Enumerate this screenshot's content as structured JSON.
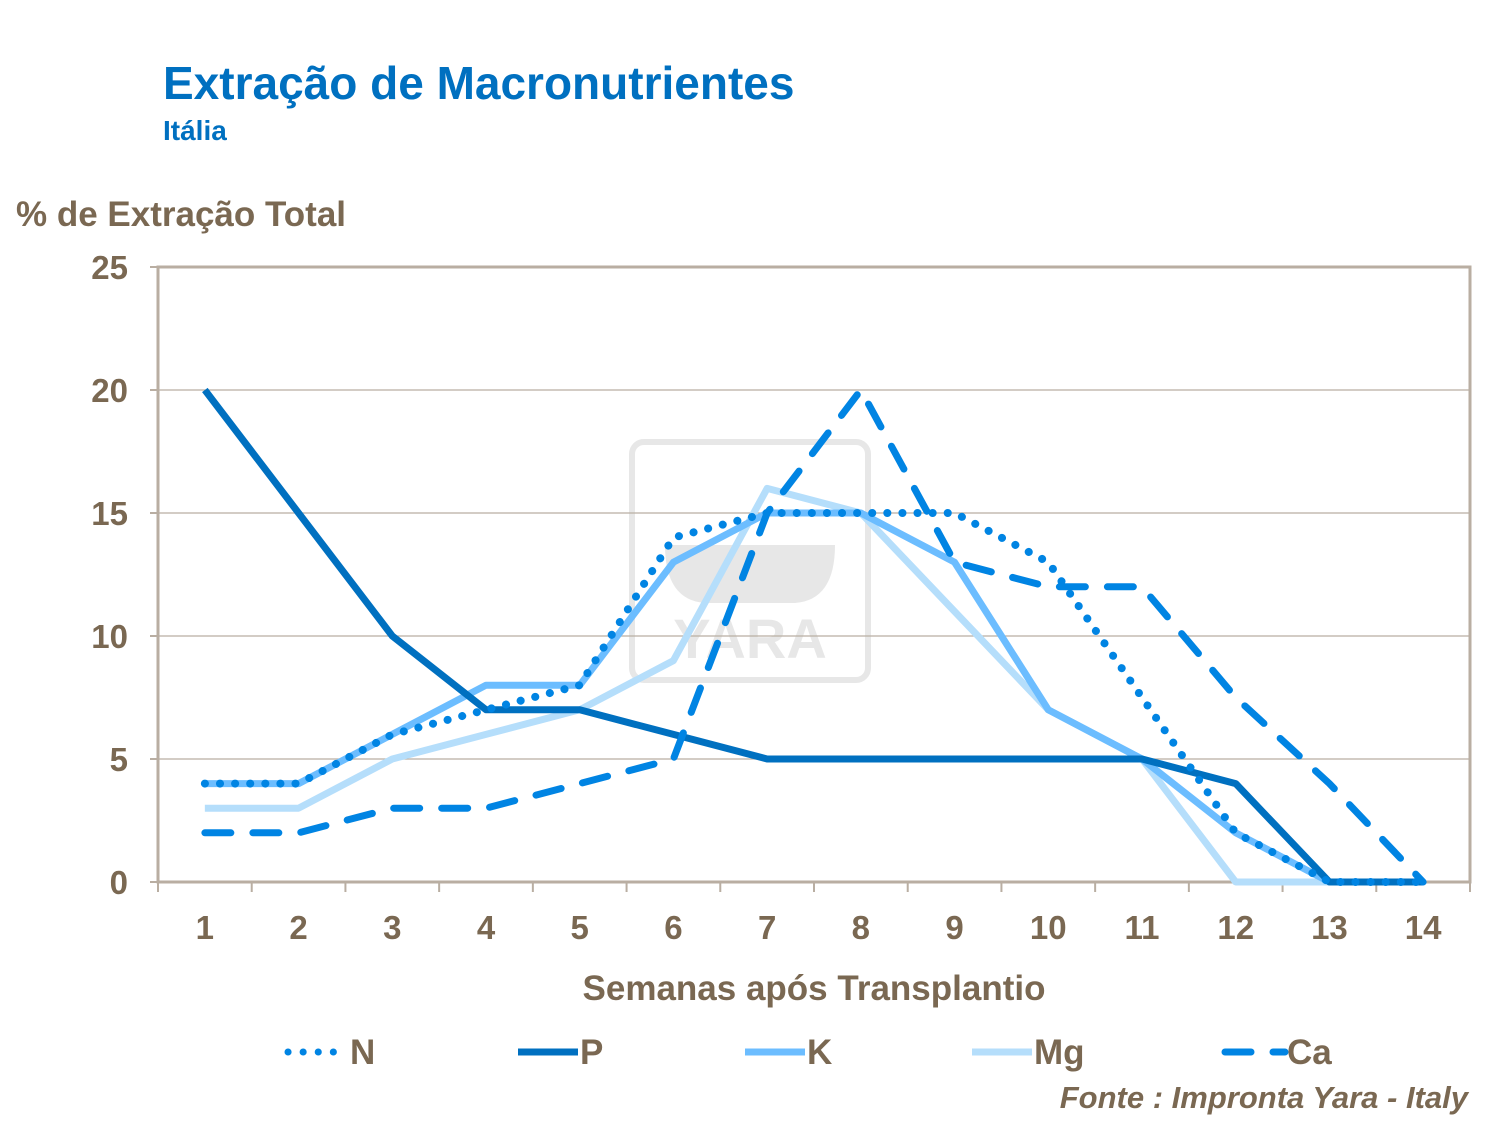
{
  "title": "Extração de Macronutrientes",
  "subtitle": "Itália",
  "source": "Fonte : Impronta Yara - Italy",
  "watermark": "YARA",
  "chart_data": {
    "type": "line",
    "title": "Extração de Macronutrientes",
    "subtitle": "Itália",
    "xlabel": "Semanas após Transplantio",
    "ylabel": "% de Extração Total",
    "categories": [
      "1",
      "2",
      "3",
      "4",
      "5",
      "6",
      "7",
      "8",
      "9",
      "10",
      "11",
      "12",
      "13",
      "14"
    ],
    "ylim": [
      0,
      25
    ],
    "yticks": [
      "0",
      "5",
      "10",
      "15",
      "20",
      "25"
    ],
    "grid": true,
    "legend": "bottom",
    "series": [
      {
        "name": "N",
        "style": "dotted",
        "color": "#0084e3",
        "values": [
          4,
          4,
          6,
          7,
          8,
          14,
          15,
          15,
          15,
          13,
          7.5,
          2,
          0,
          0
        ]
      },
      {
        "name": "P",
        "style": "solid",
        "color": "#0070c0",
        "values": [
          20,
          15,
          10,
          7,
          7,
          6,
          5,
          5,
          5,
          5,
          5,
          4,
          0,
          0
        ]
      },
      {
        "name": "K",
        "style": "solid",
        "color": "#6cbdff",
        "values": [
          4,
          4,
          6,
          8,
          8,
          13,
          15,
          15,
          13,
          7,
          5,
          2,
          0,
          0
        ]
      },
      {
        "name": "Mg",
        "style": "solid",
        "color": "#b5defb",
        "values": [
          3,
          3,
          5,
          6,
          7,
          9,
          16,
          15,
          11,
          7,
          5,
          0,
          0,
          0
        ]
      },
      {
        "name": "Ca",
        "style": "dashed",
        "color": "#0084e3",
        "values": [
          2,
          2,
          3,
          3,
          4,
          5,
          15,
          20,
          13,
          12,
          12,
          7.5,
          4,
          0
        ]
      }
    ]
  }
}
